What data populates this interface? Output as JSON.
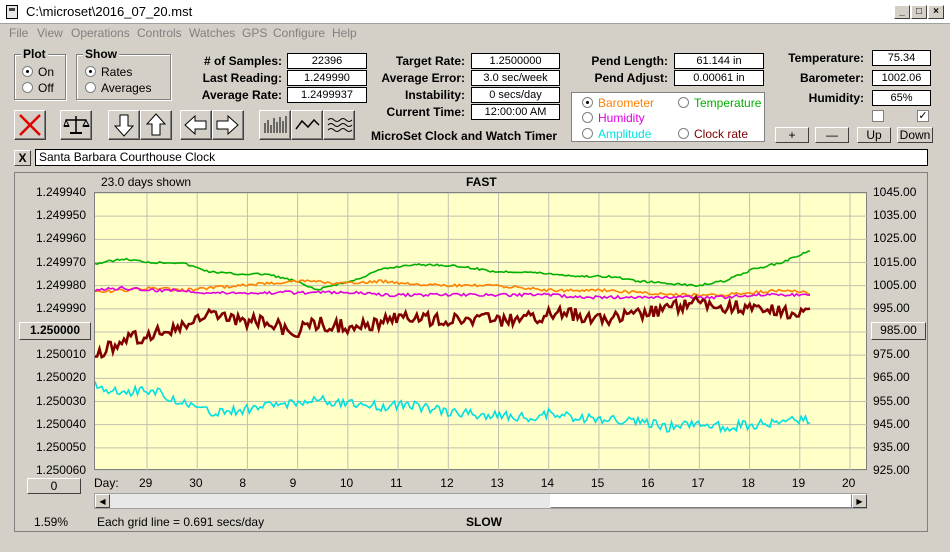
{
  "window": {
    "title": "C:\\microset\\2016_07_20.mst"
  },
  "menu": [
    "File",
    "View",
    "Operations",
    "Controls",
    "Watches",
    "GPS",
    "Configure",
    "Help"
  ],
  "plot_group": {
    "title": "Plot",
    "on": "On",
    "off": "Off"
  },
  "show_group": {
    "title": "Show",
    "rates": "Rates",
    "averages": "Averages"
  },
  "stats": {
    "samples_label": "# of Samples:",
    "samples": "22396",
    "last_label": "Last Reading:",
    "last": "1.249990",
    "avg_label": "Average Rate:",
    "avg": "1.2499937",
    "target_label": "Target Rate:",
    "target": "1.2500000",
    "error_label": "Average Error:",
    "error": "3.0 sec/week",
    "instab_label": "Instability:",
    "instab": "0 secs/day",
    "time_label": "Current Time:",
    "time": "12:00:00 AM",
    "app_name": "MicroSet Clock and Watch Timer",
    "pend_len_label": "Pend Length:",
    "pend_len": "61.144 in",
    "pend_adj_label": "Pend Adjust:",
    "pend_adj": "0.00061 in",
    "temp_label": "Temperature:",
    "temp": "75.34",
    "baro_label": "Barometer:",
    "baro": "1002.06",
    "hum_label": "Humidity:",
    "hum": "65%"
  },
  "series_select": {
    "barometer": "Barometer",
    "temperature": "Temperature",
    "humidity": "Humidity",
    "amplitude": "Amplitude",
    "clockrate": "Clock rate"
  },
  "colors": {
    "barometer": "#ff8000",
    "temperature": "#00b000",
    "humidity": "#e000e0",
    "amplitude": "#00e0e0",
    "clockrate": "#800000"
  },
  "adj_buttons": {
    "plus": "+",
    "minus": "—",
    "up": "Up",
    "down": "Down"
  },
  "description": "Santa Barbara Courthouse Clock",
  "close_x": "X",
  "chart_header": {
    "days_shown": "23.0 days shown",
    "fast": "FAST",
    "slow": "SLOW",
    "grid_note": "Each grid line = 0.691 secs/day",
    "percent": "1.59%",
    "left_btn": "1.250000",
    "right_btn": "985.00",
    "bottom_btn": "0",
    "day_label": "Day:"
  },
  "chart_data": {
    "type": "line",
    "y_left_ticks": [
      "1.249940",
      "1.249950",
      "1.249960",
      "1.249970",
      "1.249980",
      "1.249990",
      "1.250000",
      "1.250010",
      "1.250020",
      "1.250030",
      "1.250040",
      "1.250050",
      "1.250060"
    ],
    "y_right_ticks": [
      "1045.00",
      "1035.00",
      "1025.00",
      "1015.00",
      "1005.00",
      "995.00",
      "985.00",
      "975.00",
      "965.00",
      "955.00",
      "945.00",
      "935.00",
      "925.00"
    ],
    "x_ticks": [
      "29",
      "30",
      "8",
      "9",
      "10",
      "11",
      "12",
      "13",
      "14",
      "15",
      "16",
      "17",
      "18",
      "19",
      "20"
    ],
    "ylim_left": [
      1.24994,
      1.25006
    ],
    "ylim_right": [
      925,
      1045
    ],
    "grid": true,
    "series": [
      {
        "key": "temperature",
        "color": "#00b000",
        "x": [
          0,
          4,
          8,
          12,
          16,
          20,
          24,
          28,
          31,
          33,
          36,
          40,
          44,
          48,
          52,
          56,
          60,
          64,
          68,
          72,
          76,
          80,
          84,
          88,
          92,
          96,
          100
        ],
        "y": [
          1014.5,
          1016.5,
          1015,
          1015,
          1011,
          1010,
          1010,
          1007,
          1003,
          1005,
          1007,
          1012,
          1014,
          1014,
          1013,
          1011,
          1011,
          1010,
          1009,
          1009,
          1007,
          1006,
          1005,
          1007,
          1012,
          1015,
          1020
        ]
      },
      {
        "key": "barometer",
        "color": "#ff8000",
        "x": [
          0,
          4,
          8,
          12,
          16,
          20,
          24,
          28,
          31,
          33,
          36,
          40,
          44,
          48,
          52,
          56,
          60,
          64,
          68,
          72,
          76,
          80,
          84,
          88,
          92,
          96,
          100
        ],
        "y": [
          1002,
          1003,
          1004,
          1003,
          1004,
          1005,
          1006,
          1007,
          1007,
          1006,
          1006,
          1007,
          1006,
          1005,
          1005,
          1005,
          1004,
          1003,
          1003,
          1003,
          1002,
          1001,
          1001,
          1001,
          1002,
          1003,
          1002
        ]
      },
      {
        "key": "humidity",
        "color": "#e000e0",
        "x": [
          0,
          4,
          8,
          12,
          16,
          20,
          24,
          28,
          31,
          33,
          36,
          40,
          44,
          48,
          52,
          56,
          60,
          64,
          68,
          72,
          76,
          80,
          84,
          88,
          92,
          96,
          100
        ],
        "y": [
          1003,
          1004,
          1003,
          1003,
          1002,
          1002,
          1002,
          1002,
          1002,
          1002,
          1002,
          1001,
          1001,
          1001,
          1001,
          1001,
          1001,
          1001,
          1000,
          1000,
          1000,
          1000,
          1000,
          1000,
          1001,
          1001,
          1001
        ]
      },
      {
        "key": "clockrate",
        "color": "#800000",
        "x": [
          0,
          4,
          8,
          12,
          16,
          20,
          24,
          28,
          31,
          33,
          36,
          40,
          44,
          48,
          52,
          56,
          60,
          64,
          68,
          72,
          76,
          80,
          84,
          88,
          92,
          96,
          100
        ],
        "y": [
          1.250011,
          1.250003,
          1.250001,
          1.249998,
          1.249993,
          1.249995,
          1.249996,
          1.25,
          1.249996,
          1.249997,
          1.249998,
          1.249996,
          1.249993,
          1.249995,
          1.249994,
          1.249995,
          1.249994,
          1.249992,
          1.249993,
          1.249994,
          1.249992,
          1.24999,
          1.249987,
          1.249989,
          1.24999,
          1.249991,
          1.249992
        ]
      },
      {
        "key": "amplitude",
        "color": "#00e0e0",
        "x": [
          0,
          4,
          8,
          12,
          16,
          20,
          24,
          28,
          31,
          33,
          36,
          40,
          44,
          48,
          52,
          56,
          60,
          64,
          68,
          72,
          76,
          80,
          84,
          88,
          92,
          96,
          100
        ],
        "y": [
          962,
          959,
          960,
          955,
          950,
          951,
          953,
          955,
          956,
          955,
          954,
          953,
          954,
          951,
          950,
          949,
          948,
          950,
          948,
          947,
          946,
          944,
          946,
          944,
          945,
          946,
          947
        ]
      }
    ]
  }
}
